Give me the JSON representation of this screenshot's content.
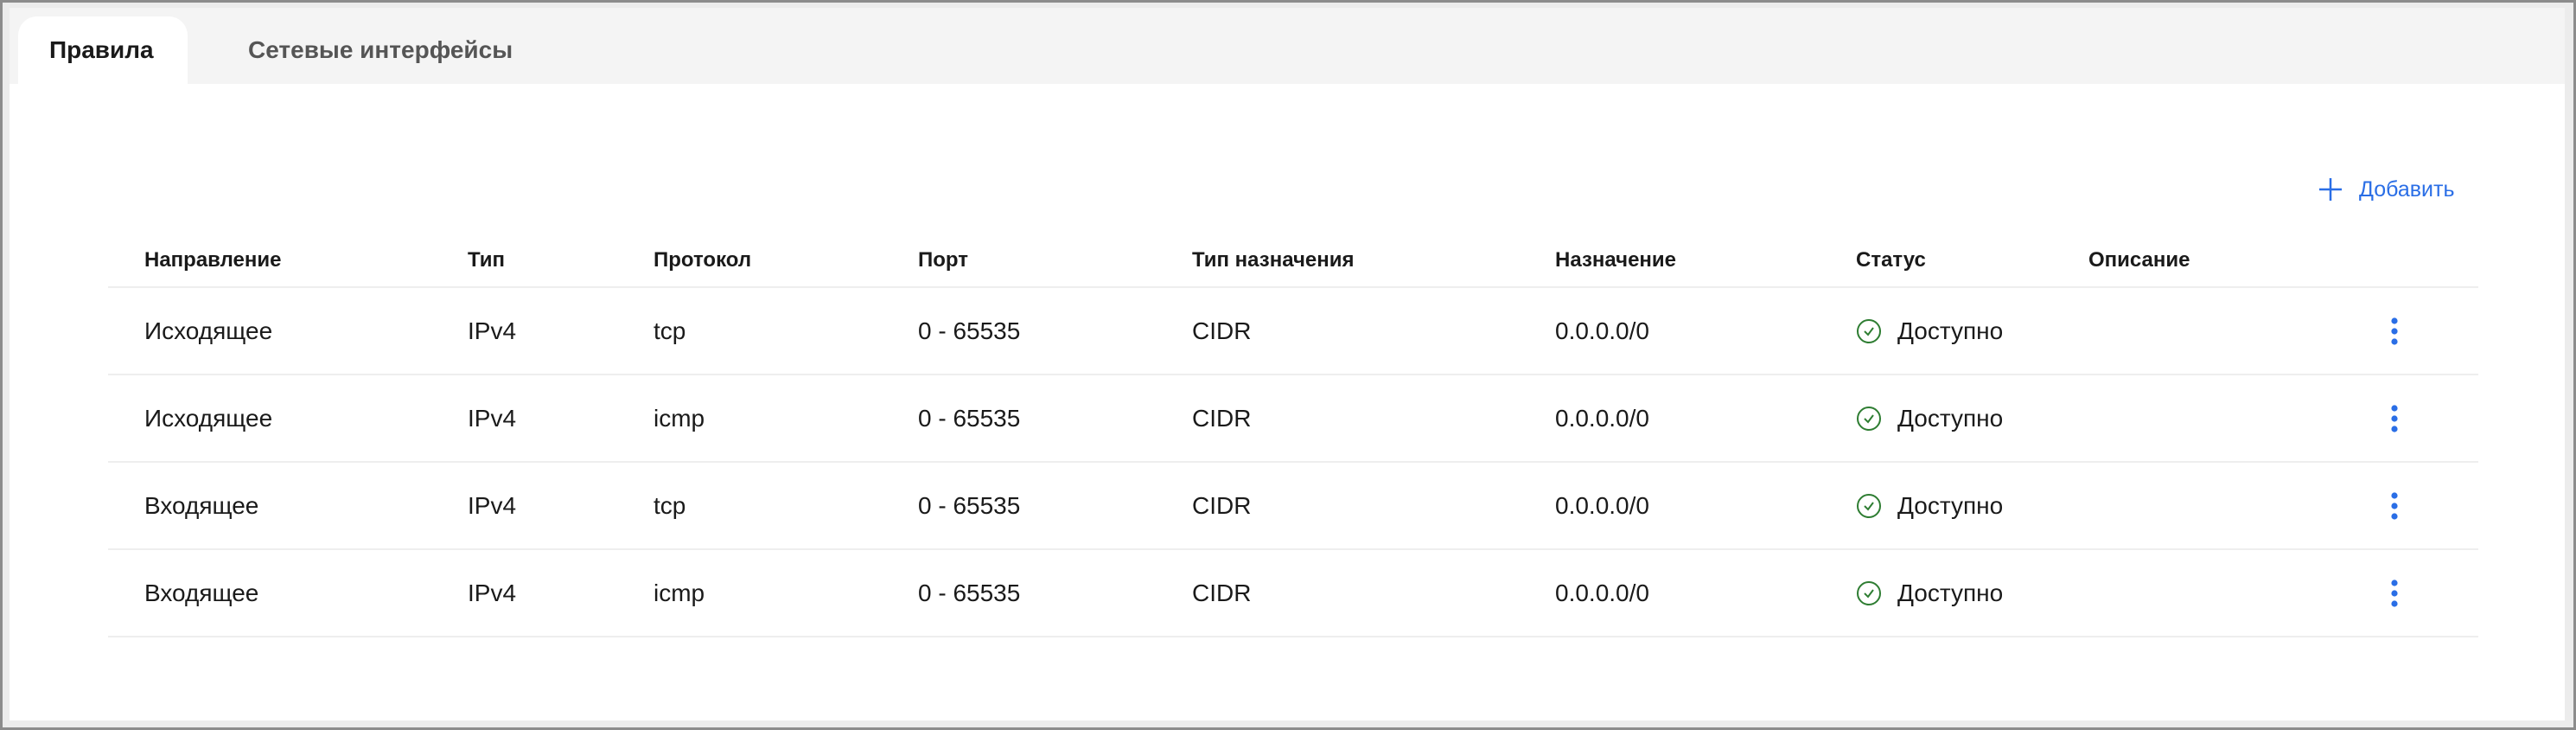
{
  "tabs": [
    {
      "label": "Правила",
      "active": true
    },
    {
      "label": "Сетевые интерфейсы",
      "active": false
    }
  ],
  "add_button": {
    "label": "Добавить",
    "icon": "plus-icon",
    "color": "#2a6ee6"
  },
  "table": {
    "columns": [
      "Направление",
      "Тип",
      "Протокол",
      "Порт",
      "Тип назначения",
      "Назначение",
      "Статус",
      "Описание"
    ],
    "rows": [
      {
        "direction": "Исходящее",
        "type": "IPv4",
        "protocol": "tcp",
        "port": "0 - 65535",
        "dest_type": "CIDR",
        "destination": "0.0.0.0/0",
        "status": "Доступно",
        "description": ""
      },
      {
        "direction": "Исходящее",
        "type": "IPv4",
        "protocol": "icmp",
        "port": "0 - 65535",
        "dest_type": "CIDR",
        "destination": "0.0.0.0/0",
        "status": "Доступно",
        "description": ""
      },
      {
        "direction": "Входящее",
        "type": "IPv4",
        "protocol": "tcp",
        "port": "0 - 65535",
        "dest_type": "CIDR",
        "destination": "0.0.0.0/0",
        "status": "Доступно",
        "description": ""
      },
      {
        "direction": "Входящее",
        "type": "IPv4",
        "protocol": "icmp",
        "port": "0 - 65535",
        "dest_type": "CIDR",
        "destination": "0.0.0.0/0",
        "status": "Доступно",
        "description": ""
      }
    ]
  },
  "colors": {
    "status_ok": "#2e7d32",
    "accent": "#2a6ee6"
  }
}
